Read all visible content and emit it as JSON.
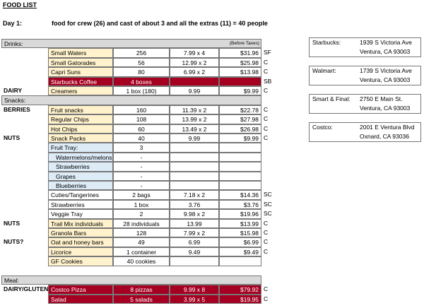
{
  "title": "FOOD LIST",
  "day": {
    "label": "Day 1:",
    "text": "food for crew (26) and cast of about 3 and all the extras (11) = 40 people"
  },
  "colors": {
    "header": "#d9d9d9",
    "item": "#fff2cc",
    "fruit": "#ddebf7",
    "alert": "#a50021"
  },
  "sections": [
    {
      "header": "Drinks:",
      "note": "(Before Taxes)",
      "rows": [
        {
          "cells": [
            null,
            "Small Waters",
            "256",
            "7.99 x 4",
            "$31.96",
            "SF"
          ],
          "fill": "item"
        },
        {
          "cells": [
            null,
            "Small Gatorades",
            "56",
            "12.99 x 2",
            "$25.98",
            "C"
          ],
          "fill": "item"
        },
        {
          "cells": [
            null,
            "Capri Suns",
            "80",
            "6.99 x 2",
            "$13.98",
            "C"
          ],
          "fill": "item"
        },
        {
          "cells": [
            null,
            "Starbucks Coffee",
            "4 boxes",
            null,
            null,
            "SB"
          ],
          "fill": "alert"
        },
        {
          "cells": [
            "DAIRY",
            "Creamers",
            "1 box (180)",
            "9.99",
            "$9.99",
            "C"
          ],
          "fill": "item"
        }
      ]
    },
    {
      "header": "Snacks:",
      "rows": [
        {
          "cells": [
            "BERRIES",
            "Fruit snacks",
            "160",
            "11.39 x 2",
            "$22.78",
            "C"
          ],
          "fill": "item"
        },
        {
          "cells": [
            null,
            "Regular Chips",
            "108",
            "13.99 x 2",
            "$27.98",
            "C"
          ],
          "fill": "item"
        },
        {
          "cells": [
            null,
            "Hot Chips",
            "60",
            "13.49 x 2",
            "$26.98",
            "C"
          ],
          "fill": "item"
        },
        {
          "cells": [
            "NUTS",
            "Snack Packs",
            "40",
            "9.99",
            "$9.99",
            "C"
          ],
          "fill": "item"
        },
        {
          "cells": [
            null,
            "Fruit Tray:",
            "3",
            null,
            null,
            null
          ],
          "fill": "fruit"
        },
        {
          "cells": [
            null,
            "Watermelons/melons",
            "-",
            null,
            null,
            null
          ],
          "fill": "fruit",
          "indent": true
        },
        {
          "cells": [
            null,
            "Strawberries",
            "-",
            null,
            null,
            null
          ],
          "fill": "fruit",
          "indent": true
        },
        {
          "cells": [
            null,
            "Grapes",
            "-",
            null,
            null,
            null
          ],
          "fill": "fruit",
          "indent": true
        },
        {
          "cells": [
            null,
            "Blueberries",
            "-",
            null,
            null,
            null
          ],
          "fill": "fruit",
          "indent": true
        },
        {
          "cells": [
            null,
            "Cuties/Tangerines",
            "2 bags",
            "7.18 x 2",
            "$14.36",
            "SC"
          ]
        },
        {
          "cells": [
            null,
            "Strawberries",
            "1 box",
            "3.76",
            "$3.76",
            "SC"
          ]
        },
        {
          "cells": [
            null,
            "Veggie Tray",
            "2",
            "9.98 x 2",
            "$19.96",
            "SC"
          ]
        },
        {
          "cells": [
            "NUTS",
            "Trail Mix individuals",
            "28 individuals",
            "13.99",
            "$13.99",
            "C"
          ],
          "fill": "item"
        },
        {
          "cells": [
            null,
            "Granola Bars",
            "128",
            "7.99 x 2",
            "$15.98",
            "C"
          ],
          "fill": "item"
        },
        {
          "cells": [
            "NUTS?",
            "Oat and honey bars",
            "49",
            "6.99",
            "$6.99",
            "C"
          ],
          "fill": "item"
        },
        {
          "cells": [
            null,
            "Licorice",
            "1 container",
            "9.49",
            "$9.49",
            "C"
          ],
          "fill": "item"
        },
        {
          "cells": [
            null,
            "GF Cookies",
            "40 cookies",
            null,
            null,
            null
          ],
          "fill": "item"
        }
      ]
    },
    {
      "header": "Meal:",
      "rows": [
        {
          "cells": [
            "DAIRY/GLUTEN",
            "Costco Pizza",
            "8 pizzas",
            "9.99 x 8",
            "$79.92",
            "C"
          ],
          "fill": "alert"
        },
        {
          "cells": [
            null,
            "Salad",
            "5 salads",
            "3.99 x 5",
            "$19.95",
            "C"
          ],
          "fill": "alert"
        }
      ]
    }
  ],
  "stores": [
    {
      "name": "Starbucks:",
      "address": [
        "1939 S Victoria Ave",
        "Ventura, CA 93003"
      ]
    },
    {
      "name": "Walmart:",
      "address": [
        "1739 S Victoria Ave",
        "Ventura, CA 93003"
      ]
    },
    {
      "name": "Smart & Final:",
      "address": [
        "2750 E Main St.",
        "Ventura, CA 93003"
      ]
    },
    {
      "name": "Costco:",
      "address": [
        "2001 E Ventura Blvd",
        "Oxnard, CA 93036"
      ]
    }
  ]
}
